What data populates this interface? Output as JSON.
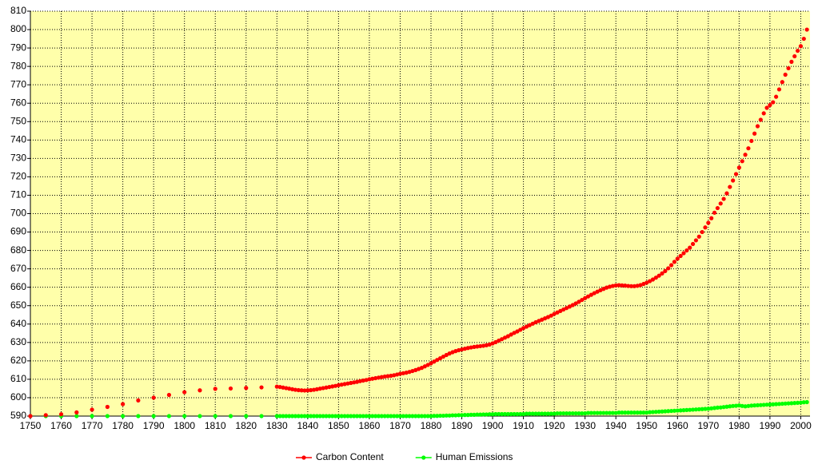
{
  "chart_data": {
    "type": "scatter",
    "x": [
      1750,
      1755,
      1760,
      1765,
      1770,
      1775,
      1780,
      1785,
      1790,
      1795,
      1800,
      1805,
      1810,
      1815,
      1820,
      1825,
      1830,
      1831,
      1832,
      1833,
      1834,
      1835,
      1836,
      1837,
      1838,
      1839,
      1840,
      1841,
      1842,
      1843,
      1844,
      1845,
      1846,
      1847,
      1848,
      1849,
      1850,
      1851,
      1852,
      1853,
      1854,
      1855,
      1856,
      1857,
      1858,
      1859,
      1860,
      1861,
      1862,
      1863,
      1864,
      1865,
      1866,
      1867,
      1868,
      1869,
      1870,
      1871,
      1872,
      1873,
      1874,
      1875,
      1876,
      1877,
      1878,
      1879,
      1880,
      1881,
      1882,
      1883,
      1884,
      1885,
      1886,
      1887,
      1888,
      1889,
      1890,
      1891,
      1892,
      1893,
      1894,
      1895,
      1896,
      1897,
      1898,
      1899,
      1900,
      1901,
      1902,
      1903,
      1904,
      1905,
      1906,
      1907,
      1908,
      1909,
      1910,
      1911,
      1912,
      1913,
      1914,
      1915,
      1916,
      1917,
      1918,
      1919,
      1920,
      1921,
      1922,
      1923,
      1924,
      1925,
      1926,
      1927,
      1928,
      1929,
      1930,
      1931,
      1932,
      1933,
      1934,
      1935,
      1936,
      1937,
      1938,
      1939,
      1940,
      1941,
      1942,
      1943,
      1944,
      1945,
      1946,
      1947,
      1948,
      1949,
      1950,
      1951,
      1952,
      1953,
      1954,
      1955,
      1956,
      1957,
      1958,
      1959,
      1960,
      1961,
      1962,
      1963,
      1964,
      1965,
      1966,
      1967,
      1968,
      1969,
      1970,
      1971,
      1972,
      1973,
      1974,
      1975,
      1976,
      1977,
      1978,
      1979,
      1980,
      1981,
      1982,
      1983,
      1984,
      1985,
      1986,
      1987,
      1988,
      1989,
      1990,
      1991,
      1992,
      1993,
      1994,
      1995,
      1996,
      1997,
      1998,
      1999,
      2000,
      2001,
      2002
    ],
    "series": [
      {
        "name": "Carbon Content",
        "color": "#ff0000",
        "values": [
          590,
          590.5,
          591,
          592,
          593.5,
          595,
          596.5,
          598.5,
          600,
          601.5,
          603,
          604,
          604.8,
          605,
          605.3,
          605.6,
          606,
          605.8,
          605.5,
          605.2,
          604.9,
          604.6,
          604.3,
          604.1,
          604,
          603.9,
          604,
          604.1,
          604.3,
          604.6,
          604.9,
          605.2,
          605.5,
          605.8,
          606.1,
          606.4,
          606.8,
          607.1,
          607.4,
          607.7,
          608,
          608.3,
          608.6,
          609,
          609.3,
          609.6,
          610,
          610.3,
          610.6,
          610.9,
          611.2,
          611.5,
          611.7,
          611.9,
          612.2,
          612.6,
          613,
          613.3,
          613.6,
          614,
          614.5,
          615,
          615.6,
          616.2,
          617,
          617.8,
          618.7,
          619.6,
          620.5,
          621.4,
          622.3,
          623.2,
          624,
          624.7,
          625.3,
          625.8,
          626.2,
          626.6,
          627,
          627.3,
          627.6,
          627.8,
          628,
          628.2,
          628.5,
          628.9,
          629.5,
          630.2,
          631,
          631.8,
          632.6,
          633.4,
          634.3,
          635.2,
          636,
          636.9,
          637.8,
          638.6,
          639.4,
          640.2,
          641,
          641.7,
          642.4,
          643.1,
          643.8,
          644.6,
          645.5,
          646.3,
          647.1,
          647.9,
          648.7,
          649.5,
          650.3,
          651.2,
          652.1,
          653.1,
          654.1,
          655,
          655.9,
          656.8,
          657.6,
          658.4,
          659.1,
          659.8,
          660.3,
          660.7,
          661,
          661.1,
          661,
          660.9,
          660.7,
          660.6,
          660.6,
          660.8,
          661.2,
          661.8,
          662.5,
          663.3,
          664.2,
          665.2,
          666.3,
          667.5,
          668.8,
          670.3,
          672,
          673.8,
          675.5,
          677,
          678.5,
          680,
          681.5,
          683.5,
          685.5,
          687.5,
          690,
          692.5,
          695,
          697.5,
          700.5,
          703,
          705.5,
          708,
          711,
          714.5,
          718,
          721.5,
          725,
          728.5,
          732,
          735.5,
          739.5,
          743.5,
          747.5,
          751,
          754.5,
          757.5,
          759,
          760.5,
          763.5,
          767.5,
          771.5,
          775.5,
          779,
          782.5,
          785.5,
          788.5,
          791,
          795,
          800
        ]
      },
      {
        "name": "Human Emissions",
        "color": "#00ff00",
        "values": [
          590,
          590,
          590,
          590,
          590,
          590,
          590,
          590,
          590,
          590,
          590,
          590,
          590,
          590,
          590,
          590,
          590,
          590,
          590,
          590,
          590,
          590,
          590,
          590,
          590,
          590,
          590,
          590,
          590,
          590,
          590,
          590,
          590,
          590,
          590,
          590,
          590,
          590,
          590,
          590,
          590,
          590,
          590,
          590,
          590,
          590,
          590,
          590,
          590,
          590,
          590,
          590,
          590,
          590,
          590,
          590,
          590,
          590,
          590,
          590,
          590,
          590,
          590,
          590,
          590,
          590,
          590,
          590.1,
          590.1,
          590.2,
          590.2,
          590.3,
          590.3,
          590.4,
          590.4,
          590.5,
          590.5,
          590.6,
          590.6,
          590.7,
          590.7,
          590.8,
          590.8,
          590.9,
          590.9,
          591,
          591,
          591.1,
          591.1,
          591.1,
          591.1,
          591.1,
          591.1,
          591.1,
          591.1,
          591.1,
          591.1,
          591.3,
          591.3,
          591.3,
          591.3,
          591.3,
          591.3,
          591.3,
          591.3,
          591.3,
          591.3,
          591.5,
          591.5,
          591.5,
          591.5,
          591.5,
          591.5,
          591.5,
          591.5,
          591.5,
          591.5,
          591.7,
          591.7,
          591.7,
          591.7,
          591.7,
          591.7,
          591.7,
          591.7,
          591.7,
          591.7,
          591.9,
          591.9,
          591.9,
          591.9,
          591.9,
          591.9,
          591.9,
          591.9,
          591.9,
          591.9,
          592.1,
          592.2,
          592.3,
          592.4,
          592.5,
          592.6,
          592.7,
          592.8,
          592.9,
          593,
          593.1,
          593.2,
          593.3,
          593.4,
          593.5,
          593.6,
          593.7,
          593.8,
          593.9,
          594,
          594.2,
          594.4,
          594.6,
          594.7,
          594.9,
          595.1,
          595.3,
          595.5,
          595.6,
          595.8,
          595.5,
          595.3,
          595.5,
          595.7,
          595.8,
          595.9,
          596,
          596.1,
          596.2,
          596.3,
          596.4,
          596.5,
          596.6,
          596.7,
          596.8,
          596.9,
          597,
          597.1,
          597.2,
          597.3,
          597.5,
          597.6
        ]
      }
    ],
    "xlim": [
      1750,
      2003
    ],
    "xticks": [
      1750,
      1760,
      1770,
      1780,
      1790,
      1800,
      1810,
      1820,
      1830,
      1840,
      1850,
      1860,
      1870,
      1880,
      1890,
      1900,
      1910,
      1920,
      1930,
      1940,
      1950,
      1960,
      1970,
      1980,
      1990,
      2000
    ],
    "ylim": [
      590,
      810
    ],
    "yticks": [
      590,
      600,
      610,
      620,
      630,
      640,
      650,
      660,
      670,
      680,
      690,
      700,
      710,
      720,
      730,
      740,
      750,
      760,
      770,
      780,
      790,
      800,
      810
    ],
    "grid": true,
    "legend": "bottom",
    "background": "#ffffaa"
  }
}
